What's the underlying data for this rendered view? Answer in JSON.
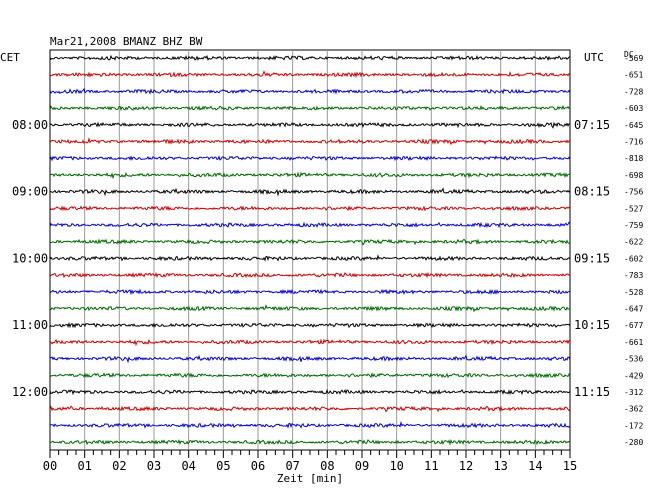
{
  "chart_data": {
    "type": "line",
    "title": "Mar21,2008  BMANZ BHZ BW",
    "xlabel": "Zeit [min]",
    "ylabel": "",
    "left_axis_label": "CET",
    "right_axis_label": "UTC",
    "offset_axis_label": "DC",
    "xlim": [
      0,
      15
    ],
    "x_ticks": [
      "00",
      "01",
      "02",
      "03",
      "04",
      "05",
      "06",
      "07",
      "08",
      "09",
      "10",
      "11",
      "12",
      "13",
      "14",
      "15"
    ],
    "left_time_labels": [
      {
        "trace": 4,
        "label": "08:00"
      },
      {
        "trace": 8,
        "label": "09:00"
      },
      {
        "trace": 12,
        "label": "10:00"
      },
      {
        "trace": 16,
        "label": "11:00"
      },
      {
        "trace": 20,
        "label": "12:00"
      }
    ],
    "right_time_labels": [
      {
        "trace": 4,
        "label": "07:15"
      },
      {
        "trace": 8,
        "label": "08:15"
      },
      {
        "trace": 12,
        "label": "09:15"
      },
      {
        "trace": 16,
        "label": "10:15"
      },
      {
        "trace": 20,
        "label": "11:15"
      }
    ],
    "trace_colors": [
      "#000000",
      "#cc0000",
      "#0000cc",
      "#006600"
    ],
    "traces": [
      {
        "offset": "-569"
      },
      {
        "offset": "-651"
      },
      {
        "offset": "-728"
      },
      {
        "offset": "-603"
      },
      {
        "offset": "-645"
      },
      {
        "offset": "-716"
      },
      {
        "offset": "-818"
      },
      {
        "offset": "-698"
      },
      {
        "offset": "-756"
      },
      {
        "offset": "-527"
      },
      {
        "offset": "-759"
      },
      {
        "offset": "-622"
      },
      {
        "offset": "-602"
      },
      {
        "offset": "-783"
      },
      {
        "offset": "-528"
      },
      {
        "offset": "-647"
      },
      {
        "offset": "-677"
      },
      {
        "offset": "-661"
      },
      {
        "offset": "-536"
      },
      {
        "offset": "-429"
      },
      {
        "offset": "-312"
      },
      {
        "offset": "-362"
      },
      {
        "offset": "-172"
      },
      {
        "offset": "-280"
      }
    ]
  }
}
